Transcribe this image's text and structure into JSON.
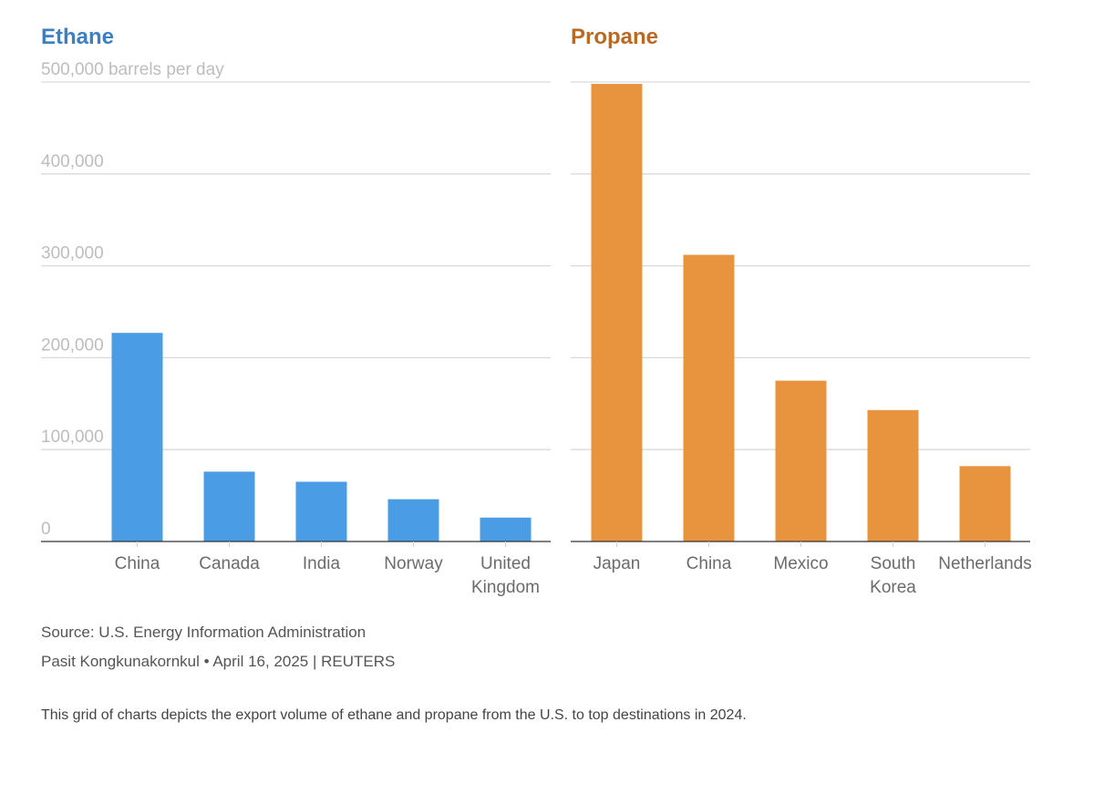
{
  "chart_data": [
    {
      "type": "bar",
      "title": "Ethane",
      "title_color": "#3b7fc4",
      "bar_color": "#4a9de4",
      "unit_label": "500,000 barrels per day",
      "yticks": [
        "0",
        "100,000",
        "200,000",
        "300,000",
        "400,000",
        "500,000 barrels per day"
      ],
      "ylim": [
        0,
        500000
      ],
      "grid": true,
      "categories": [
        "China",
        "Canada",
        "India",
        "Norway",
        "United Kingdom"
      ],
      "category_lines": [
        [
          "China"
        ],
        [
          "Canada"
        ],
        [
          "India"
        ],
        [
          "Norway"
        ],
        [
          "United",
          "Kingdom"
        ]
      ],
      "values": [
        227000,
        76000,
        65000,
        46000,
        26000
      ]
    },
    {
      "type": "bar",
      "title": "Propane",
      "title_color": "#b86a24",
      "bar_color": "#e8943f",
      "yticks": [],
      "ylim": [
        0,
        500000
      ],
      "grid": true,
      "categories": [
        "Japan",
        "China",
        "Mexico",
        "South Korea",
        "Netherlands"
      ],
      "category_lines": [
        [
          "Japan"
        ],
        [
          "China"
        ],
        [
          "Mexico"
        ],
        [
          "South",
          "Korea"
        ],
        [
          "Netherlands"
        ]
      ],
      "values": [
        498000,
        312000,
        175000,
        143000,
        82000
      ]
    }
  ],
  "footer": {
    "source": "Source: U.S. Energy Information Administration",
    "byline": "Pasit Kongkunakornkul • April 16, 2025 | REUTERS",
    "description": "This grid of charts depicts the export volume of ethane and propane from the U.S. to top destinations in 2024."
  }
}
